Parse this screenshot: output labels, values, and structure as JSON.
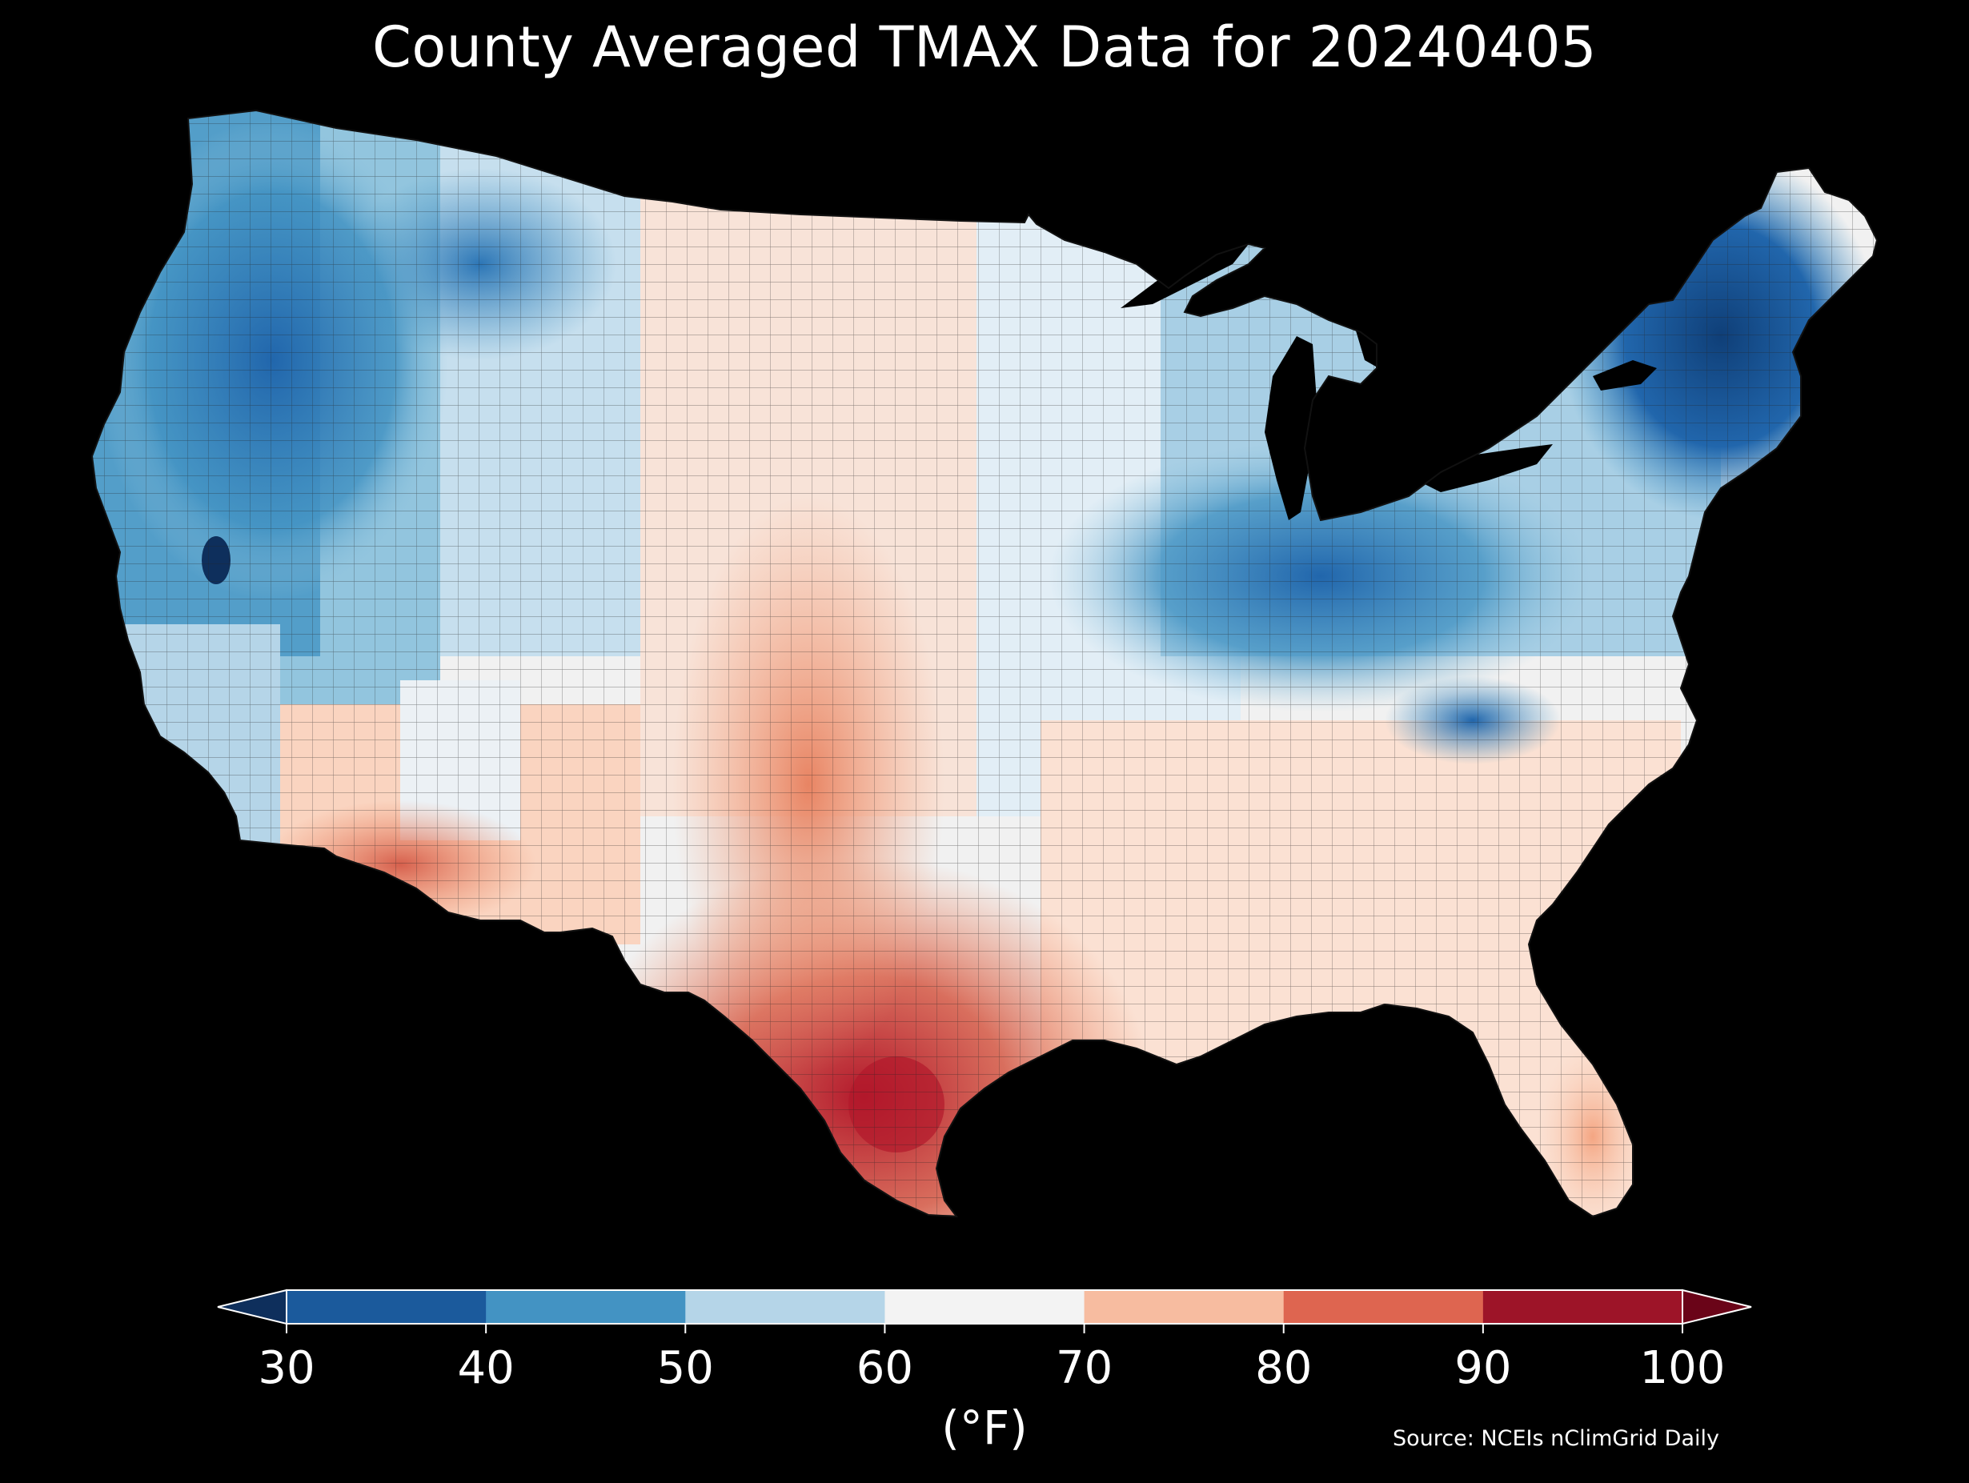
{
  "title": "County Averaged TMAX Data for 20240405",
  "colorbar": {
    "ticks": [
      "30",
      "40",
      "50",
      "60",
      "70",
      "80",
      "90",
      "100"
    ],
    "unit": "(°F)",
    "bin_colors": [
      "#1b5a9c",
      "#4393c3",
      "#b5d5e8",
      "#f3f3f3",
      "#f7bca0",
      "#de6550",
      "#9d1428"
    ],
    "under_color": "#0e2f5c",
    "over_color": "#6a0418"
  },
  "source": "Source: NCEIs nClimGrid Daily",
  "map_colors": {
    "very_cold": "#0e3a6e",
    "cold": "#2166ac",
    "cool": "#4393c3",
    "mild_cool": "#92c5de",
    "neutral": "#f1f1f1",
    "mild_warm": "#fbd3bd",
    "warm": "#ef8a62",
    "hot": "#c73a33",
    "water": "#000000"
  },
  "map_content": {
    "region": "Contiguous United States",
    "variable": "TMAX",
    "date": "20240405",
    "coldest_areas": [
      "Maine",
      "New England",
      "Northern Rockies"
    ],
    "warmest_areas": [
      "South Texas",
      "Southern Arizona"
    ]
  }
}
